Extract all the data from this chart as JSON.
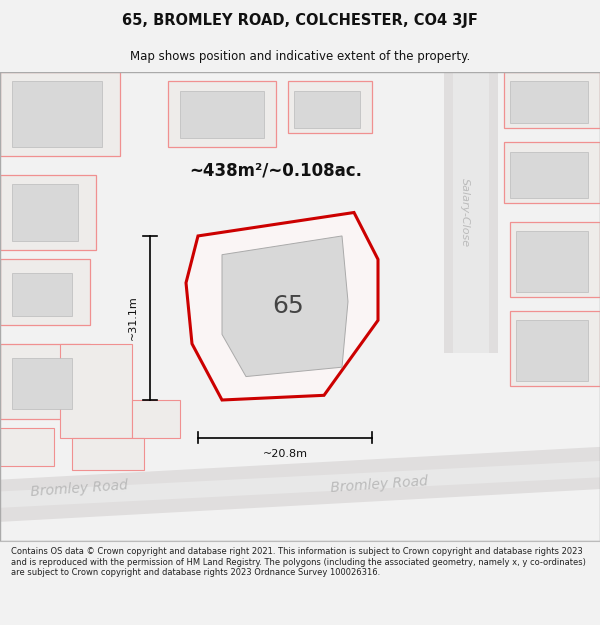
{
  "title": "65, BROMLEY ROAD, COLCHESTER, CO4 3JF",
  "subtitle": "Map shows position and indicative extent of the property.",
  "area_label": "~438m²/~0.108ac.",
  "number_label": "65",
  "width_label": "~20.8m",
  "height_label": "~31.1m",
  "road_label_bromley": "Bromley Road",
  "road_label_salary": "Salary-Close",
  "footer_text": "Contains OS data © Crown copyright and database right 2021. This information is subject to Crown copyright and database rights 2023 and is reproduced with the permission of HM Land Registry. The polygons (including the associated geometry, namely x, y co-ordinates) are subject to Crown copyright and database rights 2023 Ordnance Survey 100026316.",
  "bg_color": "#f2f2f2",
  "map_bg": "#eeecea",
  "building_fill": "#d8d8d8",
  "red_color": "#cc0000",
  "pink_color": "#f09090",
  "footer_bg": "#ffffff",
  "title_fontsize": 10.5,
  "subtitle_fontsize": 8.5,
  "area_fontsize": 12,
  "number_fontsize": 18,
  "dim_fontsize": 8,
  "road_fontsize": 10,
  "salary_fontsize": 8,
  "footer_fontsize": 6.0
}
